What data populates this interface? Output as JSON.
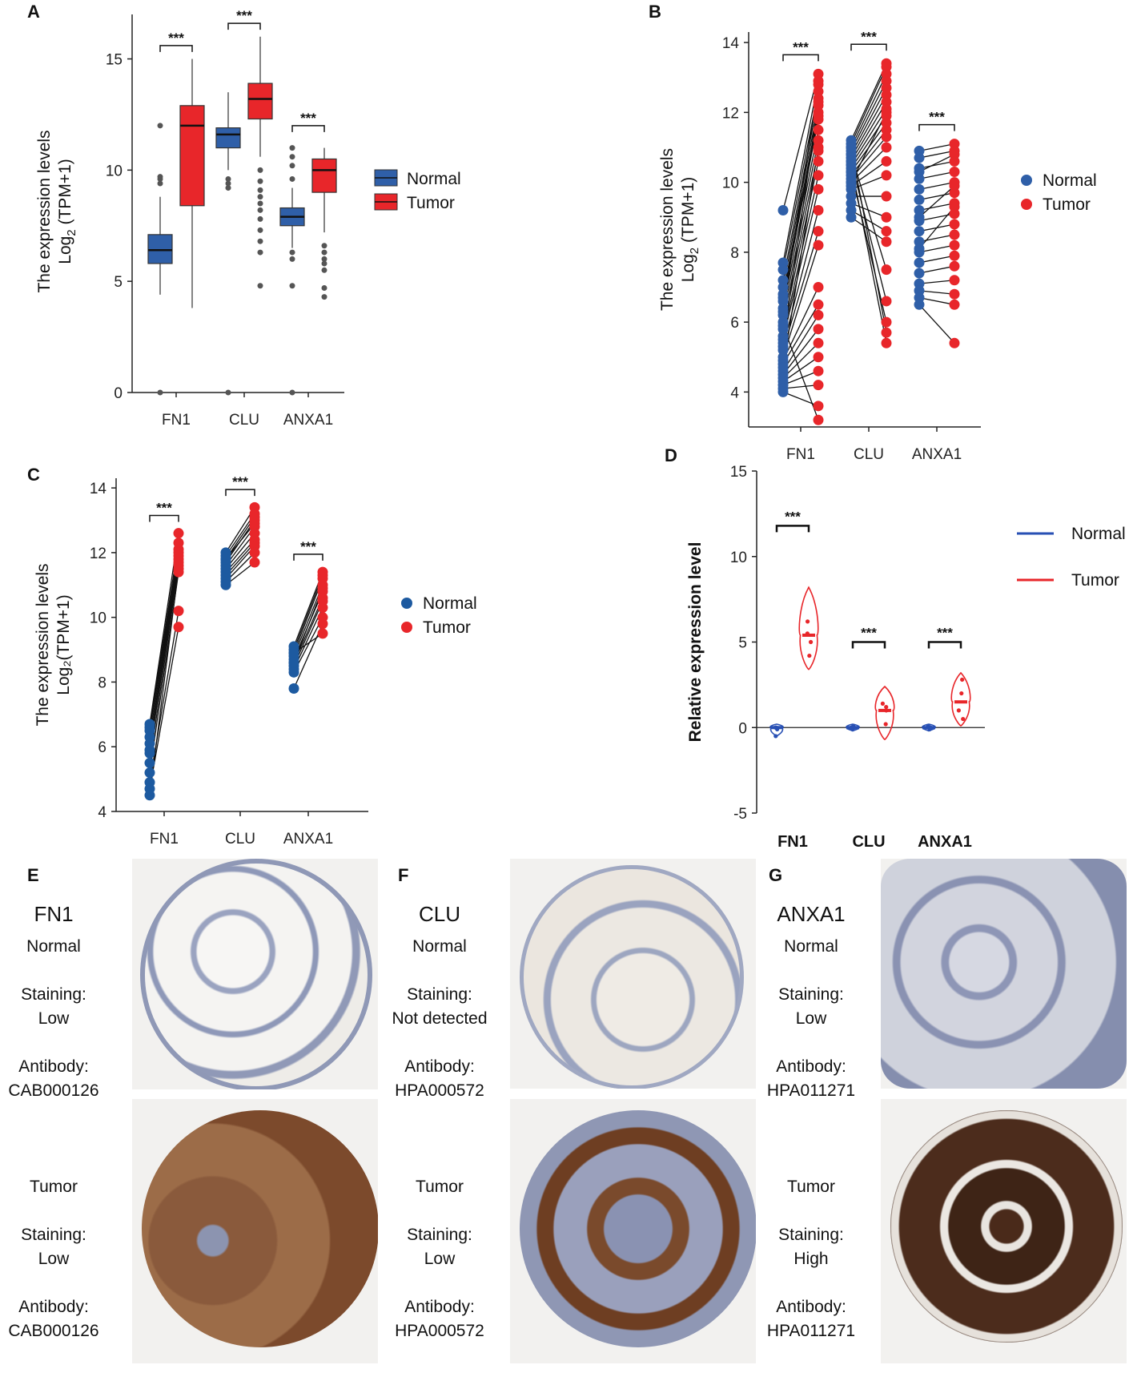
{
  "chart_data": [
    {
      "panel": "A",
      "type": "box",
      "ylabel_line1": "The  expression   levels",
      "ylabel_line2": "Log",
      "ylabel_sub": "2",
      "ylabel_line3": "(TPM+1)",
      "yticks": [
        "0",
        "5",
        "10",
        "15"
      ],
      "ylim": [
        0,
        17
      ],
      "categories": [
        "FN1",
        "CLU",
        "ANXA1"
      ],
      "significance": [
        "***",
        "***",
        "***"
      ],
      "legend": [
        {
          "name": "Normal",
          "color": "#2f5fa8"
        },
        {
          "name": "Tumor",
          "color": "#e8262a"
        }
      ],
      "series": [
        {
          "name": "Normal",
          "boxes": [
            {
              "q1": 5.8,
              "median": 6.4,
              "q3": 7.1,
              "whislo": 4.4,
              "whishi": 8.8,
              "outliers": [
                0,
                9.4,
                9.6,
                9.7,
                12.0
              ]
            },
            {
              "q1": 11.0,
              "median": 11.6,
              "q3": 11.9,
              "whislo": 10.0,
              "whishi": 13.5,
              "outliers": [
                0,
                9.2,
                9.4,
                9.6
              ]
            },
            {
              "q1": 7.5,
              "median": 7.9,
              "q3": 8.3,
              "whislo": 6.5,
              "whishi": 9.2,
              "outliers": [
                0,
                4.8,
                6.0,
                6.3,
                9.6,
                10.2,
                10.6,
                11.0
              ]
            }
          ]
        },
        {
          "name": "Tumor",
          "boxes": [
            {
              "q1": 8.4,
              "median": 12.0,
              "q3": 12.9,
              "whislo": 3.8,
              "whishi": 15.0,
              "outliers": []
            },
            {
              "q1": 12.3,
              "median": 13.2,
              "q3": 13.9,
              "whislo": 10.6,
              "whishi": 16.0,
              "outliers": [
                4.8,
                6.3,
                6.8,
                7.3,
                7.8,
                8.2,
                8.5,
                8.8,
                9.1,
                9.5,
                10.0
              ]
            },
            {
              "q1": 9.0,
              "median": 10.0,
              "q3": 10.5,
              "whislo": 7.2,
              "whishi": 11.0,
              "outliers": [
                4.3,
                4.7,
                5.5,
                5.8,
                6.0,
                6.3,
                6.6
              ]
            }
          ]
        }
      ]
    },
    {
      "panel": "B",
      "type": "paired-scatter",
      "ylabel_line1": "The  expression   levels",
      "ylabel_line2": "Log",
      "ylabel_sub": "2",
      "ylabel_line3": "(TPM+1)",
      "yticks": [
        "4",
        "6",
        "8",
        "10",
        "12",
        "14"
      ],
      "ylim": [
        3,
        14.3
      ],
      "categories": [
        "FN1",
        "CLU",
        "ANXA1"
      ],
      "significance": [
        "***",
        "***",
        "***"
      ],
      "legend": [
        {
          "name": "Normal",
          "color": "#2f5fa8"
        },
        {
          "name": "Tumor",
          "color": "#e8262a"
        }
      ],
      "pairs": [
        {
          "normal": [
            9.2,
            7.7,
            7.5,
            7.2,
            7.0,
            6.8,
            6.6,
            6.4,
            6.2,
            6.0,
            5.8,
            5.6,
            5.5,
            5.3,
            5.2,
            5.0,
            4.9,
            4.8,
            4.6,
            4.5,
            4.4,
            4.3,
            4.2,
            4.1,
            4.0,
            5.9,
            6.3,
            6.7,
            5.4,
            4.7
          ],
          "tumor": [
            13.1,
            12.9,
            12.6,
            12.4,
            12.2,
            12.0,
            11.8,
            11.5,
            11.2,
            10.9,
            10.6,
            10.2,
            9.8,
            9.2,
            8.6,
            8.2,
            7.0,
            6.5,
            6.2,
            5.8,
            5.4,
            5.0,
            4.6,
            4.2,
            3.6,
            3.2,
            12.8,
            11.9,
            12.3,
            11.0
          ]
        },
        {
          "normal": [
            11.2,
            11.1,
            11.0,
            10.9,
            10.8,
            10.7,
            10.6,
            10.5,
            10.4,
            10.3,
            10.2,
            10.1,
            10.0,
            9.9,
            9.8,
            9.6,
            9.4,
            9.2,
            9.0,
            10.8,
            10.6,
            10.3,
            11.0,
            10.5,
            10.0
          ],
          "tumor": [
            13.4,
            13.3,
            13.1,
            12.9,
            12.7,
            12.5,
            12.3,
            12.1,
            11.9,
            11.7,
            11.5,
            11.3,
            11.0,
            10.6,
            10.2,
            9.6,
            9.0,
            8.6,
            8.3,
            7.5,
            6.6,
            6.0,
            5.7,
            5.4,
            12.0
          ]
        },
        {
          "normal": [
            10.9,
            10.7,
            10.4,
            10.1,
            9.8,
            9.5,
            9.2,
            8.9,
            8.6,
            8.3,
            8.0,
            7.7,
            7.4,
            7.1,
            6.9,
            6.7,
            6.5,
            10.3,
            9.0,
            8.1
          ],
          "tumor": [
            11.1,
            10.9,
            10.6,
            10.3,
            10.0,
            9.7,
            9.4,
            9.1,
            8.8,
            8.5,
            8.2,
            7.9,
            7.6,
            7.2,
            6.8,
            6.5,
            5.4,
            10.8,
            9.9,
            9.3
          ]
        }
      ]
    },
    {
      "panel": "C",
      "type": "paired-scatter",
      "ylabel_line1": "The expression levels",
      "ylabel_line2": "Log₂(TPM+1)",
      "yticks": [
        "4",
        "6",
        "8",
        "10",
        "12",
        "14"
      ],
      "ylim": [
        4,
        14.3
      ],
      "categories": [
        "FN1",
        "CLU",
        "ANXA1"
      ],
      "significance": [
        "***",
        "***",
        "***"
      ],
      "legend": [
        {
          "name": "Normal",
          "color": "#1d5aa0"
        },
        {
          "name": "Tumor",
          "color": "#e8262a"
        }
      ],
      "pairs": [
        {
          "normal": [
            6.7,
            6.6,
            6.5,
            6.3,
            6.1,
            5.9,
            5.8,
            5.5,
            5.2,
            4.9,
            4.7,
            4.5
          ],
          "tumor": [
            12.6,
            12.3,
            12.1,
            12.0,
            11.9,
            11.8,
            11.7,
            11.6,
            11.4,
            10.2,
            9.7,
            11.5
          ]
        },
        {
          "normal": [
            12.0,
            11.9,
            11.8,
            11.7,
            11.6,
            11.5,
            11.4,
            11.3,
            11.2,
            11.1,
            11.0,
            11.8
          ],
          "tumor": [
            13.4,
            13.2,
            13.1,
            13.0,
            12.8,
            12.6,
            12.4,
            12.3,
            12.2,
            12.0,
            11.7,
            12.9
          ]
        },
        {
          "normal": [
            9.1,
            9.0,
            8.9,
            8.8,
            8.7,
            8.6,
            8.5,
            8.4,
            8.3,
            7.8,
            8.9,
            8.6
          ],
          "tumor": [
            11.4,
            11.3,
            11.2,
            11.0,
            10.8,
            10.6,
            10.5,
            10.3,
            10.0,
            9.8,
            9.5,
            10.9
          ]
        }
      ]
    },
    {
      "panel": "D",
      "type": "violin",
      "ylabel": "Relative expression level",
      "yticks": [
        "-5",
        "0",
        "5",
        "10",
        "15"
      ],
      "ylim": [
        -5,
        15
      ],
      "categories": [
        "FN1",
        "CLU",
        "ANXA1"
      ],
      "significance": [
        "***",
        "***",
        "***"
      ],
      "legend": [
        {
          "name": "Normal",
          "color": "#2850b4"
        },
        {
          "name": "Tumor",
          "color": "#e8262a"
        }
      ],
      "series": [
        {
          "name": "Normal",
          "violins": [
            {
              "min": -0.5,
              "max": 0.2,
              "median": 0
            },
            {
              "min": -0.2,
              "max": 0.2,
              "median": 0
            },
            {
              "min": -0.2,
              "max": 0.2,
              "median": 0
            }
          ],
          "points": [
            [
              0,
              0,
              -0.1,
              -0.5
            ],
            [
              0,
              0,
              0.1,
              -0.1
            ],
            [
              0,
              0,
              0.1,
              -0.1
            ]
          ]
        },
        {
          "name": "Tumor",
          "violins": [
            {
              "min": 3.4,
              "max": 8.2,
              "median": 5.4
            },
            {
              "min": -0.7,
              "max": 2.4,
              "median": 1.0
            },
            {
              "min": 0.1,
              "max": 3.2,
              "median": 1.5
            }
          ],
          "points": [
            [
              6.2,
              5.5,
              4.2,
              5.0
            ],
            [
              1.4,
              0.2,
              1.0,
              1.2
            ],
            [
              2.8,
              2.0,
              1.0,
              0.5
            ]
          ]
        }
      ]
    }
  ],
  "panels": {
    "A": "A",
    "B": "B",
    "C": "C",
    "D": "D",
    "E": "E",
    "F": "F",
    "G": "G"
  },
  "ihc": [
    {
      "gene": "FN1",
      "normal_label": "Normal",
      "staining_label": "Staining:",
      "normal_staining": "Low",
      "antibody_label": "Antibody:",
      "antibody": "CAB000126",
      "tumor_label": "Tumor",
      "tumor_staining": "Low"
    },
    {
      "gene": "CLU",
      "normal_label": "Normal",
      "staining_label": "Staining:",
      "normal_staining": "Not detected",
      "antibody_label": "Antibody:",
      "antibody": "HPA000572",
      "tumor_label": "Tumor",
      "tumor_staining": "Low"
    },
    {
      "gene": "ANXA1",
      "normal_label": "Normal",
      "staining_label": "Staining:",
      "normal_staining": "Low",
      "antibody_label": "Antibody:",
      "antibody": "HPA011271",
      "tumor_label": "Tumor",
      "tumor_staining": "High"
    }
  ],
  "colors": {
    "normal": "#2f5fa8",
    "tumor": "#e8262a",
    "normal_violin": "#2850b4",
    "stain_brown": "#7a4a2a",
    "stain_blue": "#8a96b8"
  }
}
